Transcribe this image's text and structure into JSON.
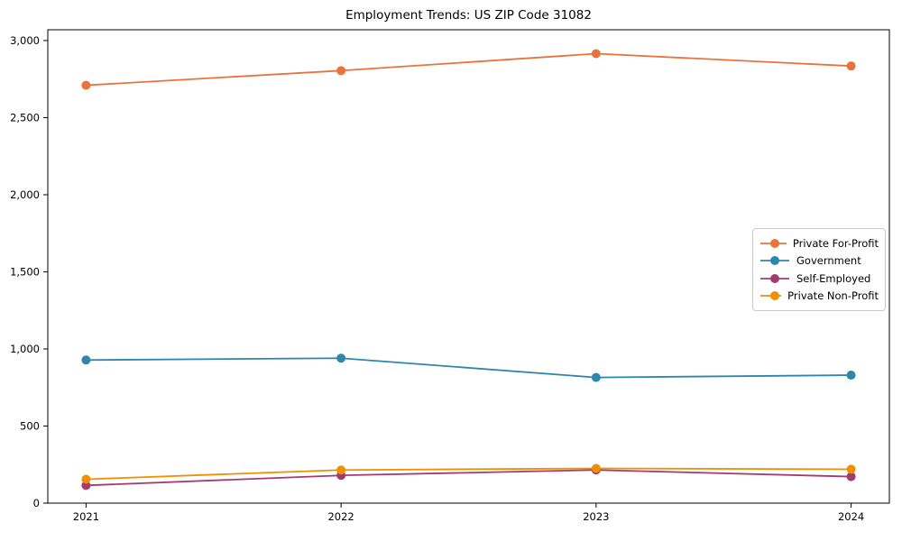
{
  "chart_data": {
    "type": "line",
    "title": "Employment Trends: US ZIP Code 31082",
    "x": [
      2021,
      2022,
      2023,
      2024
    ],
    "x_tick_labels": [
      "2021",
      "2022",
      "2023",
      "2024"
    ],
    "series": [
      {
        "name": "Private For-Profit",
        "color": "#E8743B",
        "values": [
          2710,
          2805,
          2915,
          2835
        ]
      },
      {
        "name": "Government",
        "color": "#2E86AB",
        "values": [
          928,
          940,
          815,
          830
        ]
      },
      {
        "name": "Self-Employed",
        "color": "#A23B72",
        "values": [
          115,
          180,
          215,
          172
        ]
      },
      {
        "name": "Private Non-Profit",
        "color": "#F18F01",
        "values": [
          155,
          215,
          225,
          220
        ]
      }
    ],
    "yticks": [
      0,
      500,
      1000,
      1500,
      2000,
      2500,
      3000
    ],
    "ytick_labels": [
      "0",
      "500",
      "1,000",
      "1,500",
      "2,000",
      "2,500",
      "3,000"
    ],
    "xlim": [
      2020.85,
      2024.15
    ],
    "ylim": [
      0,
      3070
    ],
    "grid": false,
    "frame": "full-box",
    "legend_position": "center-right",
    "marker": "filled-circle",
    "marker_size": 5,
    "line_width": 1.8,
    "axis_color": "#000000",
    "legend_border_color": "#c9c9c9"
  }
}
